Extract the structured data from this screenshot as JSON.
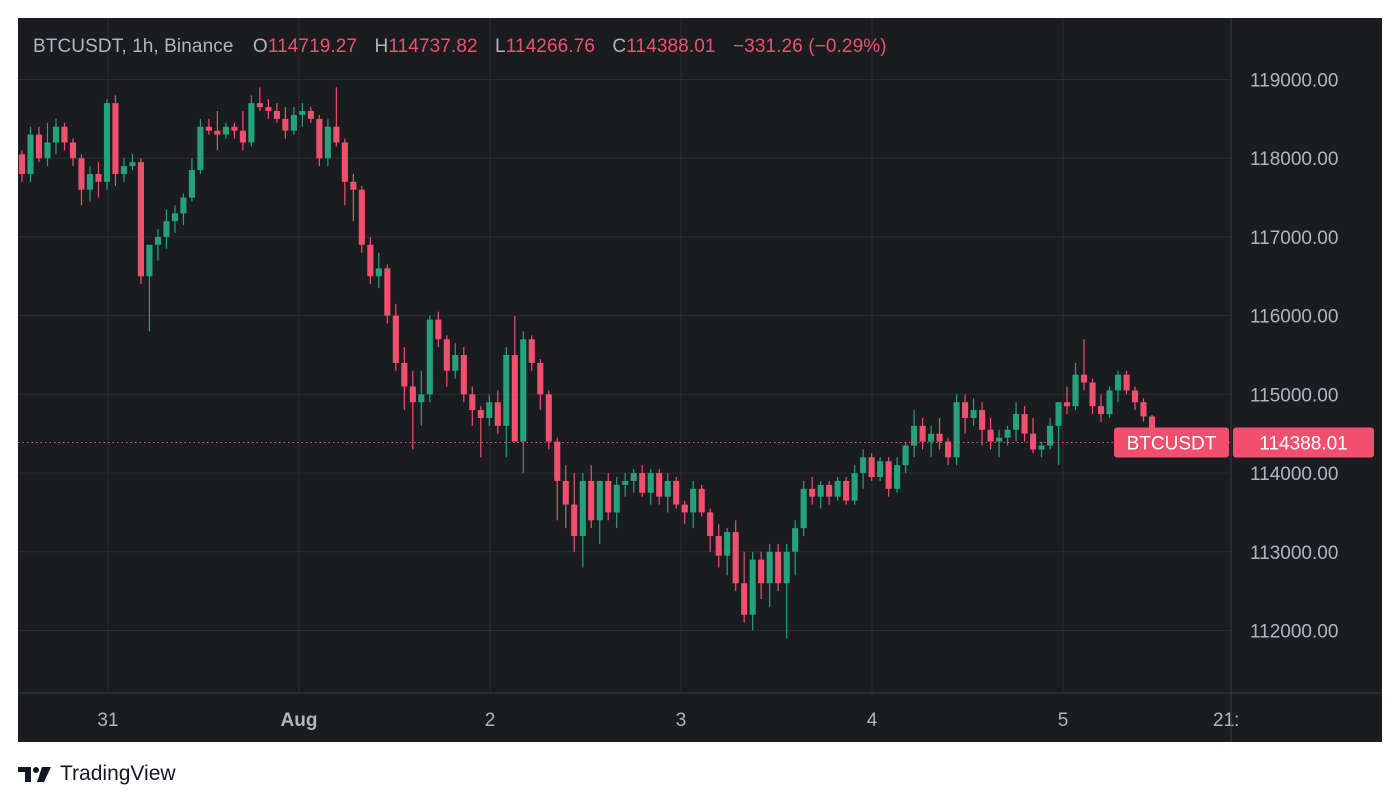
{
  "legend": {
    "symbol_line": "BTCUSDT, 1h, Binance",
    "open_key": "O",
    "open_val": "114719.27",
    "high_key": "H",
    "high_val": "114737.82",
    "low_key": "L",
    "low_val": "114266.76",
    "close_key": "C",
    "close_val": "114388.01",
    "change": "−331.26 (−0.29%)"
  },
  "brand": {
    "name": "TradingView",
    "icon": "tradingview-logo-icon"
  },
  "colors": {
    "up": "#26a17b",
    "down": "#f0506e",
    "background": "#1b1c20",
    "grid": "#2b2d33",
    "axis_text": "#b2b5be"
  },
  "chart_data": {
    "type": "candlestick",
    "symbol": "BTCUSDT",
    "interval": "1h",
    "exchange": "Binance",
    "last_price_tag": {
      "label": "BTCUSDT",
      "price": "114388.01"
    },
    "last_price": 114388.01,
    "y_ticks": [
      "119000.00",
      "118000.00",
      "117000.00",
      "116000.00",
      "115000.00",
      "114000.00",
      "113000.00",
      "112000.00"
    ],
    "y_tick_values": [
      119000,
      118000,
      117000,
      116000,
      115000,
      114000,
      113000,
      112000
    ],
    "ylim": [
      111200,
      119900
    ],
    "x_ticks": [
      "31",
      "Aug",
      "2",
      "3",
      "4",
      "5",
      "21:"
    ],
    "grid": true,
    "candles": [
      [
        118050,
        118100,
        117700,
        117800
      ],
      [
        117800,
        118400,
        117700,
        118300
      ],
      [
        118300,
        118400,
        117950,
        118000
      ],
      [
        118000,
        118450,
        117900,
        118200
      ],
      [
        118200,
        118500,
        118050,
        118400
      ],
      [
        118400,
        118450,
        118100,
        118200
      ],
      [
        118200,
        118250,
        117900,
        118000
      ],
      [
        118000,
        118050,
        117400,
        117600
      ],
      [
        117600,
        117900,
        117450,
        117800
      ],
      [
        117800,
        117950,
        117500,
        117700
      ],
      [
        117700,
        118750,
        117600,
        118700
      ],
      [
        118700,
        118800,
        117650,
        117800
      ],
      [
        117800,
        118000,
        117700,
        117900
      ],
      [
        117900,
        118050,
        117850,
        117950
      ],
      [
        117950,
        118000,
        116400,
        116500
      ],
      [
        116500,
        116900,
        115800,
        116900
      ],
      [
        116900,
        117100,
        116700,
        117000
      ],
      [
        117000,
        117350,
        116850,
        117200
      ],
      [
        117200,
        117400,
        117050,
        117300
      ],
      [
        117300,
        117550,
        117150,
        117500
      ],
      [
        117500,
        118000,
        117450,
        117850
      ],
      [
        117850,
        118500,
        117800,
        118400
      ],
      [
        118400,
        118500,
        118300,
        118350
      ],
      [
        118350,
        118600,
        118100,
        118300
      ],
      [
        118300,
        118450,
        118250,
        118400
      ],
      [
        118400,
        118450,
        118250,
        118350
      ],
      [
        118350,
        118600,
        118100,
        118200
      ],
      [
        118200,
        118800,
        118150,
        118700
      ],
      [
        118700,
        118900,
        118600,
        118650
      ],
      [
        118650,
        118750,
        118500,
        118600
      ],
      [
        118600,
        118700,
        118450,
        118500
      ],
      [
        118500,
        118650,
        118250,
        118350
      ],
      [
        118350,
        118650,
        118300,
        118550
      ],
      [
        118550,
        118700,
        118400,
        118600
      ],
      [
        118600,
        118650,
        118450,
        118500
      ],
      [
        118500,
        118550,
        117900,
        118000
      ],
      [
        118000,
        118500,
        117900,
        118400
      ],
      [
        118400,
        118900,
        118150,
        118200
      ],
      [
        118200,
        118250,
        117400,
        117700
      ],
      [
        117700,
        117800,
        117200,
        117600
      ],
      [
        117600,
        117650,
        116800,
        116900
      ],
      [
        116900,
        117000,
        116400,
        116500
      ],
      [
        116500,
        116800,
        116350,
        116600
      ],
      [
        116600,
        116650,
        115900,
        116000
      ],
      [
        116000,
        116150,
        115300,
        115400
      ],
      [
        115400,
        115600,
        114800,
        115100
      ],
      [
        115100,
        115300,
        114300,
        114900
      ],
      [
        114900,
        115300,
        114600,
        115000
      ],
      [
        115000,
        116000,
        114900,
        115950
      ],
      [
        115950,
        116050,
        115600,
        115700
      ],
      [
        115700,
        115750,
        115100,
        115300
      ],
      [
        115300,
        115650,
        115200,
        115500
      ],
      [
        115500,
        115600,
        114900,
        115000
      ],
      [
        115000,
        115100,
        114600,
        114800
      ],
      [
        114800,
        114850,
        114200,
        114700
      ],
      [
        114700,
        115000,
        114600,
        114900
      ],
      [
        114900,
        115050,
        114500,
        114600
      ],
      [
        114600,
        115600,
        114200,
        115500
      ],
      [
        115500,
        116000,
        114400,
        114400
      ],
      [
        114400,
        115800,
        114000,
        115700
      ],
      [
        115700,
        115750,
        115300,
        115400
      ],
      [
        115400,
        115450,
        114800,
        115000
      ],
      [
        115000,
        115050,
        114300,
        114400
      ],
      [
        114400,
        114450,
        113400,
        113900
      ],
      [
        113900,
        114100,
        113300,
        113600
      ],
      [
        113600,
        114000,
        113000,
        113200
      ],
      [
        113200,
        114000,
        112800,
        113900
      ],
      [
        113900,
        114100,
        113300,
        113400
      ],
      [
        113400,
        113900,
        113100,
        113900
      ],
      [
        113900,
        114000,
        113400,
        113500
      ],
      [
        113500,
        113950,
        113300,
        113850
      ],
      [
        113850,
        114000,
        113700,
        113900
      ],
      [
        113900,
        114050,
        113750,
        114000
      ],
      [
        114000,
        114100,
        113700,
        113750
      ],
      [
        113750,
        114050,
        113600,
        114000
      ],
      [
        114000,
        114050,
        113600,
        113700
      ],
      [
        113700,
        114000,
        113500,
        113900
      ],
      [
        113900,
        113950,
        113550,
        113600
      ],
      [
        113600,
        113650,
        113350,
        113500
      ],
      [
        113500,
        113900,
        113300,
        113800
      ],
      [
        113800,
        113850,
        113450,
        113500
      ],
      [
        113500,
        113550,
        113000,
        113200
      ],
      [
        113200,
        113350,
        112800,
        112950
      ],
      [
        112950,
        113300,
        112700,
        113250
      ],
      [
        113250,
        113400,
        112500,
        112600
      ],
      [
        112600,
        113000,
        112100,
        112200
      ],
      [
        112200,
        113000,
        112000,
        112900
      ],
      [
        112900,
        113000,
        112400,
        112600
      ],
      [
        112600,
        113100,
        112300,
        113000
      ],
      [
        113000,
        113100,
        112500,
        112600
      ],
      [
        112600,
        113100,
        111900,
        113000
      ],
      [
        113000,
        113400,
        112700,
        113300
      ],
      [
        113300,
        113900,
        113200,
        113800
      ],
      [
        113800,
        113950,
        113600,
        113700
      ],
      [
        113700,
        113900,
        113550,
        113850
      ],
      [
        113850,
        113900,
        113600,
        113700
      ],
      [
        113700,
        113950,
        113650,
        113900
      ],
      [
        113900,
        113950,
        113600,
        113650
      ],
      [
        113650,
        114100,
        113600,
        114000
      ],
      [
        114000,
        114300,
        113800,
        114200
      ],
      [
        114200,
        114250,
        113900,
        113950
      ],
      [
        113950,
        114200,
        113900,
        114150
      ],
      [
        114150,
        114200,
        113700,
        113800
      ],
      [
        113800,
        114200,
        113750,
        114100
      ],
      [
        114100,
        114400,
        114000,
        114350
      ],
      [
        114350,
        114800,
        114200,
        114600
      ],
      [
        114600,
        114700,
        114300,
        114400
      ],
      [
        114400,
        114600,
        114200,
        114500
      ],
      [
        114500,
        114700,
        114300,
        114400
      ],
      [
        114400,
        114450,
        114100,
        114200
      ],
      [
        114200,
        115000,
        114100,
        114900
      ],
      [
        114900,
        115000,
        114500,
        114700
      ],
      [
        114700,
        114950,
        114600,
        114800
      ],
      [
        114800,
        114900,
        114350,
        114550
      ],
      [
        114550,
        114700,
        114300,
        114400
      ],
      [
        114400,
        114550,
        114200,
        114450
      ],
      [
        114450,
        114600,
        114350,
        114550
      ],
      [
        114550,
        114900,
        114400,
        114750
      ],
      [
        114750,
        114850,
        114400,
        114500
      ],
      [
        114500,
        114700,
        114250,
        114300
      ],
      [
        114300,
        114400,
        114200,
        114350
      ],
      [
        114350,
        114700,
        114300,
        114600
      ],
      [
        114600,
        114900,
        114100,
        114900
      ],
      [
        114900,
        115100,
        114750,
        114850
      ],
      [
        114850,
        115400,
        114800,
        115250
      ],
      [
        115250,
        115700,
        115050,
        115150
      ],
      [
        115150,
        115200,
        114750,
        114850
      ],
      [
        114850,
        115000,
        114650,
        114750
      ],
      [
        114750,
        115100,
        114700,
        115050
      ],
      [
        115050,
        115300,
        114900,
        115250
      ],
      [
        115250,
        115300,
        115000,
        115050
      ],
      [
        115050,
        115100,
        114800,
        114900
      ],
      [
        114900,
        114950,
        114650,
        114720
      ],
      [
        114719.27,
        114737.82,
        114266.76,
        114388.01
      ]
    ]
  }
}
